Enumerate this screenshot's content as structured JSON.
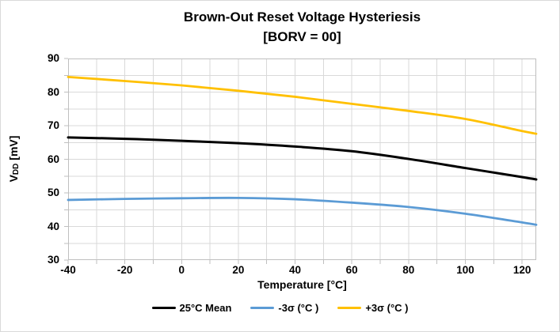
{
  "frame": {
    "background": "#FFFFFF",
    "border_color": "#D9D9D9"
  },
  "title": {
    "line1": "Brown-Out Reset Voltage Hysteriesis",
    "line2": "[BORV = 00]"
  },
  "axes": {
    "xlabel": "Temperature [°C]",
    "ylabel_pre": "V",
    "ylabel_sub": "DD",
    "ylabel_post": " [mV]"
  },
  "chart_data": {
    "type": "line",
    "title": "Brown-Out Reset Voltage Hysteriesis [BORV = 00]",
    "xlabel": "Temperature [°C]",
    "ylabel": "VDD [mV]",
    "xlim": [
      -40,
      125
    ],
    "ylim": [
      30,
      90
    ],
    "x_ticks": [
      -40,
      -20,
      0,
      20,
      40,
      60,
      80,
      100,
      120
    ],
    "y_ticks": [
      30,
      40,
      50,
      60,
      70,
      80,
      90
    ],
    "x_grid_step": 10,
    "y_grid_step": 5,
    "grid": true,
    "grid_color": "#D9D9D9",
    "axis_color": "#BFBFBF",
    "legend_position": "bottom",
    "x": [
      -40,
      -20,
      0,
      20,
      40,
      60,
      80,
      100,
      120,
      125
    ],
    "series": [
      {
        "id": "mean-25c",
        "name": "25°C Mean",
        "color": "#000000",
        "width": 3,
        "values": [
          66.5,
          66.1,
          65.5,
          64.8,
          63.8,
          62.4,
          60.1,
          57.4,
          54.7,
          54.0
        ]
      },
      {
        "id": "minus-3sigma",
        "name": "-3σ (°C )",
        "color": "#5B9BD5",
        "width": 2.8,
        "values": [
          47.9,
          48.2,
          48.4,
          48.5,
          48.1,
          47.1,
          45.8,
          43.8,
          41.2,
          40.5
        ]
      },
      {
        "id": "plus-3sigma",
        "name": "+3σ (°C )",
        "color": "#FFC000",
        "width": 2.8,
        "values": [
          84.5,
          83.3,
          82.0,
          80.4,
          78.6,
          76.5,
          74.4,
          72.0,
          68.4,
          67.6
        ]
      }
    ]
  }
}
